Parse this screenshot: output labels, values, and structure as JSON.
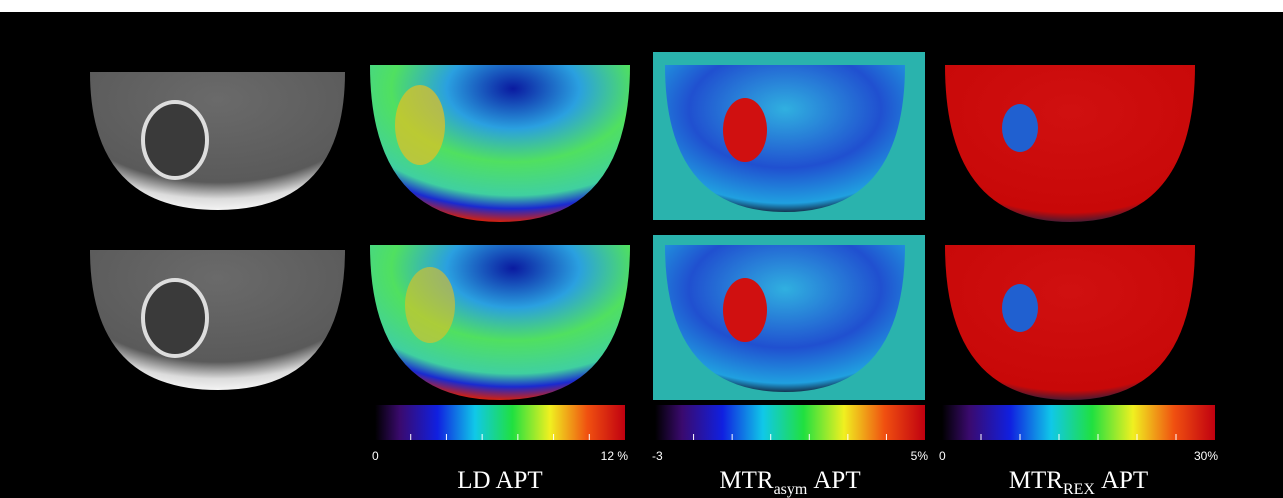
{
  "colorbars": [
    {
      "min_label": "0",
      "max_label": "12 %",
      "title": {
        "base": "LD APT"
      }
    },
    {
      "min_label": "-3",
      "max_label": "5%",
      "title": {
        "base": "MTR",
        "subscript": "asym",
        "suffix": "APT"
      }
    },
    {
      "min_label": "0",
      "max_label": "30%",
      "title": {
        "base": "MTR",
        "subscript": "REX",
        "suffix": "APT"
      }
    }
  ]
}
